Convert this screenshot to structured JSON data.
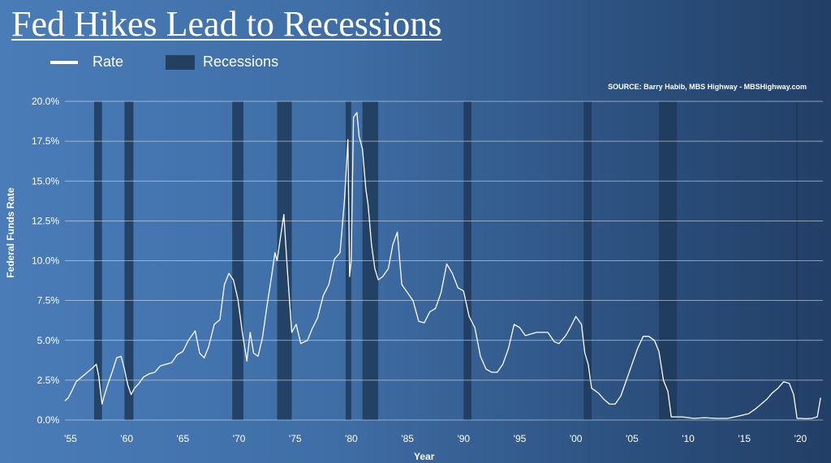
{
  "title": "Fed Hikes Lead to Recessions",
  "legend": {
    "rate_label": "Rate",
    "recessions_label": "Recessions"
  },
  "source": "SOURCE: Barry Habib, MBS Highway - MBSHighway.com",
  "colors": {
    "line": "#ffffff",
    "recession": "#1f3a5a",
    "grid": "#dfe8f3"
  },
  "chart_data": {
    "type": "line",
    "title": "Fed Hikes Lead to Recessions",
    "xlabel": "Year",
    "ylabel": "Federal Funds Rate",
    "xlim": [
      1955,
      2022.5
    ],
    "ylim": [
      0,
      20
    ],
    "grid": true,
    "legend_position": "top-left",
    "x_ticks": [
      "'55",
      "'60",
      "'65",
      "'70",
      "'75",
      "'80",
      "'85",
      "'90",
      "'95",
      "'00",
      "'05",
      "'10",
      "'15",
      "'20"
    ],
    "x_tick_values": [
      1955,
      1960,
      1965,
      1970,
      1975,
      1980,
      1985,
      1990,
      1995,
      2000,
      2005,
      2010,
      2015,
      2020
    ],
    "y_ticks": [
      "0.0%",
      "2.5%",
      "5.0%",
      "7.5%",
      "10.0%",
      "12.5%",
      "15.0%",
      "17.5%",
      "20.0%"
    ],
    "y_tick_values": [
      0,
      2.5,
      5,
      7.5,
      10,
      12.5,
      15,
      17.5,
      20
    ],
    "recessions": [
      [
        1957.6,
        1958.3
      ],
      [
        1960.3,
        1961.1
      ],
      [
        1969.9,
        1970.9
      ],
      [
        1973.9,
        1975.2
      ],
      [
        1980.0,
        1980.5
      ],
      [
        1981.5,
        1982.9
      ],
      [
        1990.5,
        1991.2
      ],
      [
        2001.2,
        2001.9
      ],
      [
        2007.9,
        2009.5
      ],
      [
        2020.1,
        2020.3
      ]
    ],
    "series": [
      {
        "name": "Rate",
        "x": [
          1955.0,
          1955.3,
          1955.6,
          1956.0,
          1956.5,
          1957.0,
          1957.5,
          1957.8,
          1958.0,
          1958.3,
          1958.5,
          1958.8,
          1959.2,
          1959.6,
          1960.0,
          1960.3,
          1960.6,
          1960.9,
          1961.2,
          1961.6,
          1962.0,
          1962.5,
          1963.0,
          1963.5,
          1964.0,
          1964.5,
          1965.0,
          1965.5,
          1966.0,
          1966.6,
          1967.0,
          1967.4,
          1967.8,
          1968.3,
          1968.8,
          1969.2,
          1969.6,
          1970.0,
          1970.4,
          1970.8,
          1971.2,
          1971.5,
          1971.8,
          1972.2,
          1972.6,
          1973.0,
          1973.4,
          1973.7,
          1973.9,
          1974.2,
          1974.5,
          1974.8,
          1975.2,
          1975.6,
          1976.0,
          1976.6,
          1977.0,
          1977.5,
          1978.0,
          1978.5,
          1979.0,
          1979.5,
          1979.9,
          1980.2,
          1980.35,
          1980.5,
          1980.7,
          1981.0,
          1981.2,
          1981.5,
          1981.8,
          1982.0,
          1982.3,
          1982.6,
          1982.9,
          1983.3,
          1983.8,
          1984.2,
          1984.6,
          1985.0,
          1985.5,
          1986.0,
          1986.5,
          1987.0,
          1987.5,
          1988.0,
          1988.5,
          1989.0,
          1989.5,
          1990.0,
          1990.5,
          1991.0,
          1991.5,
          1992.0,
          1992.5,
          1993.0,
          1993.5,
          1994.0,
          1994.5,
          1995.0,
          1995.5,
          1996.0,
          1997.0,
          1998.0,
          1998.6,
          1999.0,
          1999.6,
          2000.0,
          2000.5,
          2001.0,
          2001.3,
          2001.6,
          2001.9,
          2002.5,
          2003.0,
          2003.5,
          2004.0,
          2004.5,
          2005.0,
          2005.5,
          2006.0,
          2006.5,
          2007.0,
          2007.5,
          2007.9,
          2008.3,
          2008.7,
          2009.0,
          2010.0,
          2011.0,
          2012.0,
          2013.0,
          2014.0,
          2015.0,
          2015.9,
          2016.5,
          2017.0,
          2017.5,
          2018.0,
          2018.5,
          2019.0,
          2019.5,
          2019.9,
          2020.2,
          2020.5,
          2021.0,
          2021.5,
          2022.0,
          2022.3
        ],
        "values": [
          1.2,
          1.4,
          1.8,
          2.4,
          2.7,
          3.0,
          3.3,
          3.5,
          2.8,
          1.0,
          1.5,
          2.2,
          3.0,
          3.9,
          4.0,
          3.2,
          2.2,
          1.6,
          2.0,
          2.3,
          2.7,
          2.9,
          3.0,
          3.4,
          3.5,
          3.6,
          4.1,
          4.3,
          5.0,
          5.6,
          4.2,
          3.9,
          4.6,
          6.0,
          6.3,
          8.5,
          9.2,
          8.8,
          7.6,
          5.5,
          3.7,
          5.5,
          4.2,
          4.0,
          5.2,
          7.2,
          9.0,
          10.5,
          10.0,
          11.5,
          12.9,
          9.5,
          5.5,
          6.0,
          4.8,
          5.0,
          5.7,
          6.4,
          7.8,
          8.5,
          10.1,
          10.5,
          13.8,
          17.6,
          9.0,
          10.0,
          19.0,
          19.3,
          17.8,
          17.0,
          14.5,
          13.5,
          11.0,
          9.5,
          8.8,
          9.0,
          9.5,
          11.0,
          11.8,
          8.5,
          8.0,
          7.5,
          6.2,
          6.1,
          6.8,
          7.0,
          8.0,
          9.8,
          9.2,
          8.3,
          8.1,
          6.5,
          5.8,
          4.0,
          3.2,
          3.0,
          3.0,
          3.5,
          4.5,
          6.0,
          5.8,
          5.3,
          5.5,
          5.5,
          4.9,
          4.8,
          5.3,
          5.8,
          6.5,
          6.0,
          4.2,
          3.5,
          2.0,
          1.7,
          1.3,
          1.0,
          1.0,
          1.5,
          2.5,
          3.5,
          4.5,
          5.25,
          5.25,
          5.0,
          4.3,
          2.5,
          1.8,
          0.2,
          0.2,
          0.1,
          0.15,
          0.1,
          0.1,
          0.25,
          0.4,
          0.7,
          1.0,
          1.3,
          1.7,
          2.0,
          2.4,
          2.3,
          1.6,
          0.1,
          0.1,
          0.08,
          0.1,
          0.2,
          1.4
        ]
      }
    ]
  }
}
